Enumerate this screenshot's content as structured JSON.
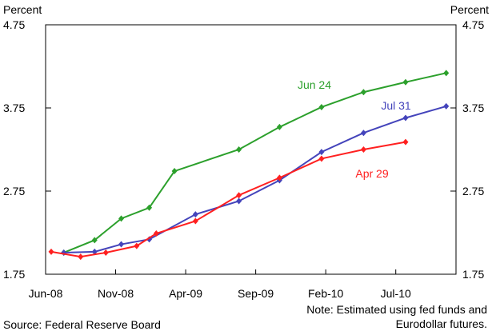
{
  "chart_data": {
    "type": "line",
    "y_label_left": "Percent",
    "y_label_right": "Percent",
    "xlim": [
      0,
      29.3
    ],
    "xticks": [
      {
        "value": 0,
        "label": "Jun-08"
      },
      {
        "value": 5,
        "label": "Nov-08"
      },
      {
        "value": 10,
        "label": "Apr-09"
      },
      {
        "value": 15,
        "label": "Sep-09"
      },
      {
        "value": 20,
        "label": "Feb-10"
      },
      {
        "value": 25,
        "label": "Jul-10"
      }
    ],
    "ylim": [
      1.75,
      4.75
    ],
    "yticks": [
      1.75,
      2.75,
      3.75,
      4.75
    ],
    "series": [
      {
        "name": "Jun 24",
        "color": "#2ca02c",
        "x": [
          1.3,
          3.5,
          5.4,
          7.4,
          9.2,
          13.8,
          16.7,
          19.7,
          22.7,
          25.7,
          28.6
        ],
        "values": [
          2.01,
          2.16,
          2.42,
          2.55,
          2.99,
          3.25,
          3.52,
          3.76,
          3.94,
          4.06,
          4.17
        ]
      },
      {
        "name": "Jul 31",
        "color": "#4444bb",
        "x": [
          1.3,
          3.5,
          5.4,
          7.4,
          10.7,
          13.8,
          16.7,
          19.7,
          22.7,
          25.7,
          28.6
        ],
        "values": [
          2.01,
          2.02,
          2.11,
          2.17,
          2.47,
          2.63,
          2.88,
          3.22,
          3.45,
          3.63,
          3.77
        ]
      },
      {
        "name": "Apr 29",
        "color": "#ff2020",
        "x": [
          0.4,
          2.5,
          4.3,
          6.5,
          7.9,
          10.7,
          13.8,
          16.7,
          19.7,
          22.7,
          25.7
        ],
        "values": [
          2.02,
          1.96,
          2.01,
          2.09,
          2.24,
          2.39,
          2.7,
          2.91,
          3.14,
          3.25,
          3.34
        ]
      }
    ],
    "source": "Source: Federal Reserve Board",
    "note": [
      "Note: Estimated using fed funds and",
      "Eurodollar futures."
    ]
  }
}
